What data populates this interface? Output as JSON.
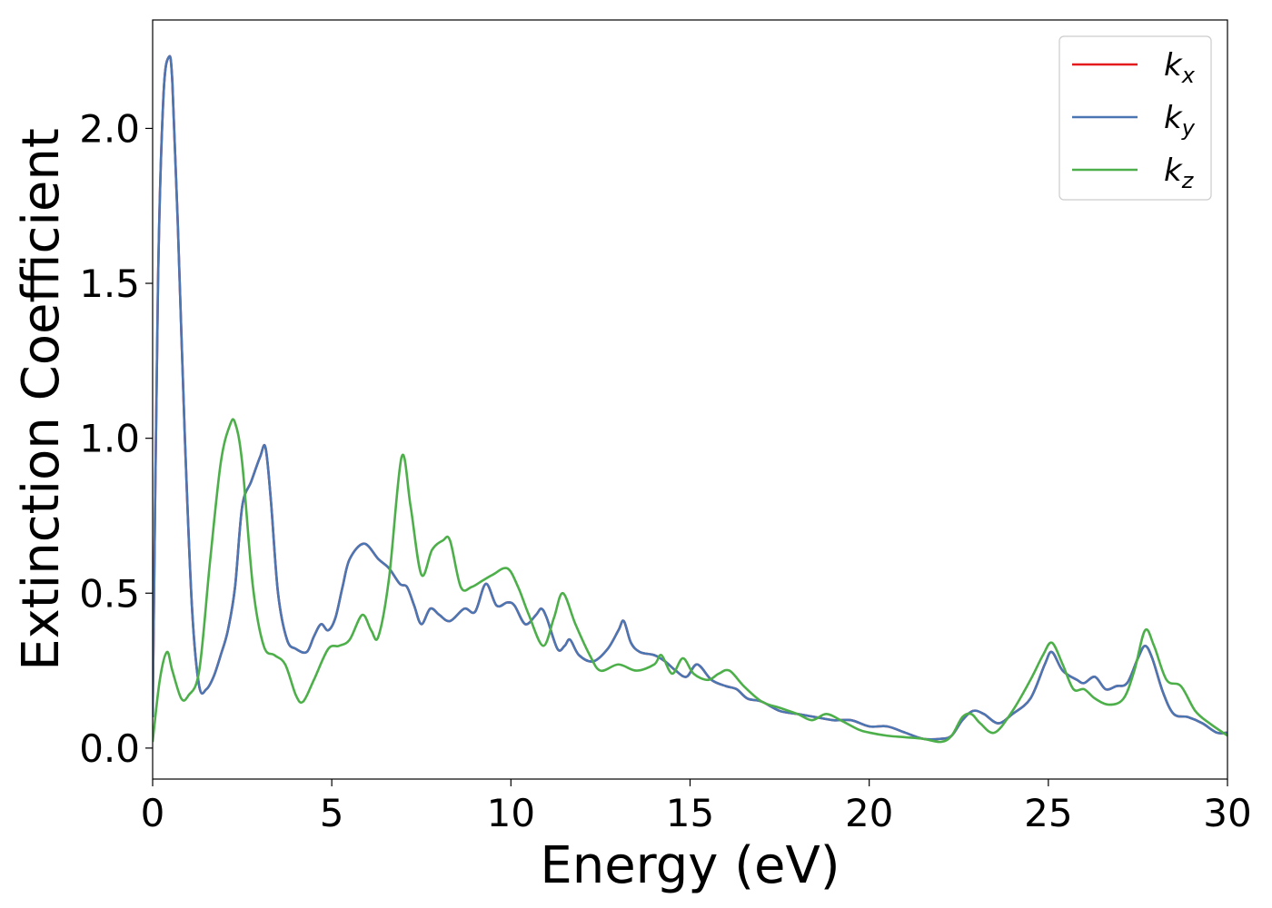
{
  "chart_data": {
    "type": "line",
    "title": "",
    "xlabel": "Energy (eV)",
    "ylabel": "Extinction Coefficient",
    "xlim": [
      0,
      30
    ],
    "ylim": [
      -0.1,
      2.35
    ],
    "xticks": [
      0,
      5,
      10,
      15,
      20,
      25,
      30
    ],
    "xtick_labels": [
      "0",
      "5",
      "10",
      "15",
      "20",
      "25",
      "30"
    ],
    "yticks": [
      0.0,
      0.5,
      1.0,
      1.5,
      2.0
    ],
    "ytick_labels": [
      "0.0",
      "0.5",
      "1.0",
      "1.5",
      "2.0"
    ],
    "grid": false,
    "legend_position": "top-right",
    "series": [
      {
        "name": "k",
        "subscript": "x",
        "color": "#e41a1c",
        "points": [
          [
            0,
            0.1
          ],
          [
            0.15,
            1.5
          ],
          [
            0.3,
            2.1
          ],
          [
            0.45,
            2.23
          ],
          [
            0.55,
            2.15
          ],
          [
            0.7,
            1.7
          ],
          [
            0.9,
            1.0
          ],
          [
            1.1,
            0.45
          ],
          [
            1.3,
            0.2
          ],
          [
            1.5,
            0.19
          ],
          [
            1.7,
            0.23
          ],
          [
            1.9,
            0.3
          ],
          [
            2.1,
            0.38
          ],
          [
            2.3,
            0.52
          ],
          [
            2.5,
            0.78
          ],
          [
            2.75,
            0.86
          ],
          [
            3.0,
            0.94
          ],
          [
            3.15,
            0.97
          ],
          [
            3.3,
            0.8
          ],
          [
            3.5,
            0.5
          ],
          [
            3.75,
            0.35
          ],
          [
            4.0,
            0.32
          ],
          [
            4.3,
            0.31
          ],
          [
            4.5,
            0.36
          ],
          [
            4.7,
            0.4
          ],
          [
            4.9,
            0.38
          ],
          [
            5.1,
            0.42
          ],
          [
            5.3,
            0.52
          ],
          [
            5.5,
            0.61
          ],
          [
            5.9,
            0.66
          ],
          [
            6.3,
            0.61
          ],
          [
            6.6,
            0.58
          ],
          [
            6.9,
            0.53
          ],
          [
            7.1,
            0.52
          ],
          [
            7.3,
            0.46
          ],
          [
            7.5,
            0.4
          ],
          [
            7.75,
            0.45
          ],
          [
            8.0,
            0.43
          ],
          [
            8.3,
            0.41
          ],
          [
            8.7,
            0.45
          ],
          [
            9.0,
            0.44
          ],
          [
            9.3,
            0.53
          ],
          [
            9.6,
            0.46
          ],
          [
            9.9,
            0.47
          ],
          [
            10.1,
            0.46
          ],
          [
            10.4,
            0.4
          ],
          [
            10.7,
            0.43
          ],
          [
            10.85,
            0.45
          ],
          [
            11.0,
            0.42
          ],
          [
            11.3,
            0.32
          ],
          [
            11.5,
            0.33
          ],
          [
            11.65,
            0.35
          ],
          [
            11.9,
            0.3
          ],
          [
            12.3,
            0.28
          ],
          [
            12.7,
            0.32
          ],
          [
            13.0,
            0.38
          ],
          [
            13.15,
            0.41
          ],
          [
            13.35,
            0.34
          ],
          [
            13.6,
            0.31
          ],
          [
            14.0,
            0.3
          ],
          [
            14.3,
            0.28
          ],
          [
            14.6,
            0.25
          ],
          [
            14.9,
            0.23
          ],
          [
            15.2,
            0.27
          ],
          [
            15.6,
            0.22
          ],
          [
            16.0,
            0.2
          ],
          [
            16.3,
            0.19
          ],
          [
            16.6,
            0.16
          ],
          [
            17.0,
            0.15
          ],
          [
            17.5,
            0.12
          ],
          [
            18.0,
            0.11
          ],
          [
            18.5,
            0.1
          ],
          [
            19.0,
            0.09
          ],
          [
            19.5,
            0.09
          ],
          [
            20.0,
            0.07
          ],
          [
            20.5,
            0.07
          ],
          [
            21.0,
            0.05
          ],
          [
            21.5,
            0.03
          ],
          [
            22.0,
            0.03
          ],
          [
            22.3,
            0.04
          ],
          [
            22.6,
            0.09
          ],
          [
            22.9,
            0.12
          ],
          [
            23.2,
            0.11
          ],
          [
            23.6,
            0.08
          ],
          [
            24.0,
            0.11
          ],
          [
            24.5,
            0.16
          ],
          [
            24.9,
            0.27
          ],
          [
            25.1,
            0.31
          ],
          [
            25.4,
            0.25
          ],
          [
            25.8,
            0.22
          ],
          [
            26.0,
            0.21
          ],
          [
            26.3,
            0.23
          ],
          [
            26.6,
            0.19
          ],
          [
            26.9,
            0.2
          ],
          [
            27.2,
            0.21
          ],
          [
            27.5,
            0.29
          ],
          [
            27.7,
            0.33
          ],
          [
            27.9,
            0.29
          ],
          [
            28.2,
            0.18
          ],
          [
            28.5,
            0.11
          ],
          [
            28.9,
            0.1
          ],
          [
            29.3,
            0.08
          ],
          [
            29.7,
            0.05
          ],
          [
            30.0,
            0.05
          ]
        ]
      },
      {
        "name": "k",
        "subscript": "y",
        "color": "#4a77b4",
        "points": [
          [
            0,
            0.1
          ],
          [
            0.15,
            1.5
          ],
          [
            0.3,
            2.1
          ],
          [
            0.45,
            2.23
          ],
          [
            0.55,
            2.15
          ],
          [
            0.7,
            1.7
          ],
          [
            0.9,
            1.0
          ],
          [
            1.1,
            0.45
          ],
          [
            1.3,
            0.2
          ],
          [
            1.5,
            0.19
          ],
          [
            1.7,
            0.23
          ],
          [
            1.9,
            0.3
          ],
          [
            2.1,
            0.38
          ],
          [
            2.3,
            0.52
          ],
          [
            2.5,
            0.78
          ],
          [
            2.75,
            0.86
          ],
          [
            3.0,
            0.94
          ],
          [
            3.15,
            0.97
          ],
          [
            3.3,
            0.8
          ],
          [
            3.5,
            0.5
          ],
          [
            3.75,
            0.35
          ],
          [
            4.0,
            0.32
          ],
          [
            4.3,
            0.31
          ],
          [
            4.5,
            0.36
          ],
          [
            4.7,
            0.4
          ],
          [
            4.9,
            0.38
          ],
          [
            5.1,
            0.42
          ],
          [
            5.3,
            0.52
          ],
          [
            5.5,
            0.61
          ],
          [
            5.9,
            0.66
          ],
          [
            6.3,
            0.61
          ],
          [
            6.6,
            0.58
          ],
          [
            6.9,
            0.53
          ],
          [
            7.1,
            0.52
          ],
          [
            7.3,
            0.46
          ],
          [
            7.5,
            0.4
          ],
          [
            7.75,
            0.45
          ],
          [
            8.0,
            0.43
          ],
          [
            8.3,
            0.41
          ],
          [
            8.7,
            0.45
          ],
          [
            9.0,
            0.44
          ],
          [
            9.3,
            0.53
          ],
          [
            9.6,
            0.46
          ],
          [
            9.9,
            0.47
          ],
          [
            10.1,
            0.46
          ],
          [
            10.4,
            0.4
          ],
          [
            10.7,
            0.43
          ],
          [
            10.85,
            0.45
          ],
          [
            11.0,
            0.42
          ],
          [
            11.3,
            0.32
          ],
          [
            11.5,
            0.33
          ],
          [
            11.65,
            0.35
          ],
          [
            11.9,
            0.3
          ],
          [
            12.3,
            0.28
          ],
          [
            12.7,
            0.32
          ],
          [
            13.0,
            0.38
          ],
          [
            13.15,
            0.41
          ],
          [
            13.35,
            0.34
          ],
          [
            13.6,
            0.31
          ],
          [
            14.0,
            0.3
          ],
          [
            14.3,
            0.28
          ],
          [
            14.6,
            0.25
          ],
          [
            14.9,
            0.23
          ],
          [
            15.2,
            0.27
          ],
          [
            15.6,
            0.22
          ],
          [
            16.0,
            0.2
          ],
          [
            16.3,
            0.19
          ],
          [
            16.6,
            0.16
          ],
          [
            17.0,
            0.15
          ],
          [
            17.5,
            0.12
          ],
          [
            18.0,
            0.11
          ],
          [
            18.5,
            0.1
          ],
          [
            19.0,
            0.09
          ],
          [
            19.5,
            0.09
          ],
          [
            20.0,
            0.07
          ],
          [
            20.5,
            0.07
          ],
          [
            21.0,
            0.05
          ],
          [
            21.5,
            0.03
          ],
          [
            22.0,
            0.03
          ],
          [
            22.3,
            0.04
          ],
          [
            22.6,
            0.09
          ],
          [
            22.9,
            0.12
          ],
          [
            23.2,
            0.11
          ],
          [
            23.6,
            0.08
          ],
          [
            24.0,
            0.11
          ],
          [
            24.5,
            0.16
          ],
          [
            24.9,
            0.27
          ],
          [
            25.1,
            0.31
          ],
          [
            25.4,
            0.25
          ],
          [
            25.8,
            0.22
          ],
          [
            26.0,
            0.21
          ],
          [
            26.3,
            0.23
          ],
          [
            26.6,
            0.19
          ],
          [
            26.9,
            0.2
          ],
          [
            27.2,
            0.21
          ],
          [
            27.5,
            0.29
          ],
          [
            27.7,
            0.33
          ],
          [
            27.9,
            0.29
          ],
          [
            28.2,
            0.18
          ],
          [
            28.5,
            0.11
          ],
          [
            28.9,
            0.1
          ],
          [
            29.3,
            0.08
          ],
          [
            29.7,
            0.05
          ],
          [
            30.0,
            0.05
          ]
        ]
      },
      {
        "name": "k",
        "subscript": "z",
        "color": "#4daf4a",
        "points": [
          [
            0,
            0.02
          ],
          [
            0.2,
            0.22
          ],
          [
            0.4,
            0.31
          ],
          [
            0.55,
            0.25
          ],
          [
            0.8,
            0.16
          ],
          [
            1.0,
            0.17
          ],
          [
            1.3,
            0.25
          ],
          [
            1.6,
            0.6
          ],
          [
            1.9,
            0.92
          ],
          [
            2.15,
            1.04
          ],
          [
            2.3,
            1.05
          ],
          [
            2.5,
            0.92
          ],
          [
            2.8,
            0.52
          ],
          [
            3.1,
            0.33
          ],
          [
            3.4,
            0.3
          ],
          [
            3.7,
            0.27
          ],
          [
            4.0,
            0.17
          ],
          [
            4.2,
            0.15
          ],
          [
            4.5,
            0.22
          ],
          [
            4.9,
            0.32
          ],
          [
            5.2,
            0.33
          ],
          [
            5.5,
            0.35
          ],
          [
            5.85,
            0.43
          ],
          [
            6.1,
            0.38
          ],
          [
            6.3,
            0.36
          ],
          [
            6.6,
            0.55
          ],
          [
            6.95,
            0.94
          ],
          [
            7.2,
            0.78
          ],
          [
            7.5,
            0.56
          ],
          [
            7.8,
            0.64
          ],
          [
            8.1,
            0.67
          ],
          [
            8.3,
            0.67
          ],
          [
            8.6,
            0.52
          ],
          [
            8.9,
            0.52
          ],
          [
            9.2,
            0.54
          ],
          [
            9.5,
            0.56
          ],
          [
            9.9,
            0.58
          ],
          [
            10.2,
            0.52
          ],
          [
            10.5,
            0.43
          ],
          [
            10.9,
            0.33
          ],
          [
            11.2,
            0.42
          ],
          [
            11.45,
            0.5
          ],
          [
            11.8,
            0.4
          ],
          [
            12.2,
            0.3
          ],
          [
            12.5,
            0.25
          ],
          [
            13.0,
            0.27
          ],
          [
            13.5,
            0.25
          ],
          [
            14.0,
            0.27
          ],
          [
            14.2,
            0.3
          ],
          [
            14.5,
            0.24
          ],
          [
            14.8,
            0.29
          ],
          [
            15.1,
            0.24
          ],
          [
            15.5,
            0.22
          ],
          [
            15.8,
            0.24
          ],
          [
            16.1,
            0.25
          ],
          [
            16.5,
            0.2
          ],
          [
            17.0,
            0.15
          ],
          [
            17.5,
            0.13
          ],
          [
            18.0,
            0.11
          ],
          [
            18.4,
            0.09
          ],
          [
            18.8,
            0.11
          ],
          [
            19.2,
            0.09
          ],
          [
            19.7,
            0.06
          ],
          [
            20.0,
            0.05
          ],
          [
            20.5,
            0.04
          ],
          [
            21.0,
            0.035
          ],
          [
            21.5,
            0.03
          ],
          [
            22.0,
            0.02
          ],
          [
            22.3,
            0.04
          ],
          [
            22.6,
            0.1
          ],
          [
            22.85,
            0.11
          ],
          [
            23.1,
            0.08
          ],
          [
            23.5,
            0.05
          ],
          [
            24.0,
            0.12
          ],
          [
            24.5,
            0.22
          ],
          [
            24.85,
            0.3
          ],
          [
            25.1,
            0.34
          ],
          [
            25.4,
            0.27
          ],
          [
            25.7,
            0.19
          ],
          [
            26.0,
            0.19
          ],
          [
            26.3,
            0.16
          ],
          [
            26.7,
            0.14
          ],
          [
            27.1,
            0.16
          ],
          [
            27.4,
            0.25
          ],
          [
            27.7,
            0.38
          ],
          [
            27.95,
            0.33
          ],
          [
            28.3,
            0.22
          ],
          [
            28.7,
            0.2
          ],
          [
            29.1,
            0.12
          ],
          [
            29.5,
            0.08
          ],
          [
            30.0,
            0.04
          ]
        ]
      }
    ]
  }
}
